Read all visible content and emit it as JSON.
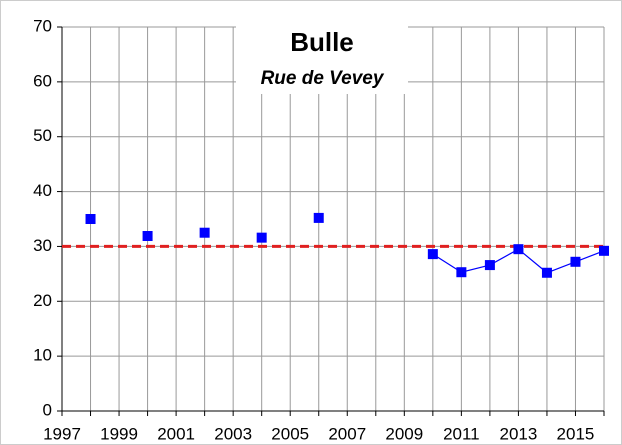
{
  "chart_data": {
    "type": "scatter",
    "title": "Bulle",
    "subtitle": "Rue de Vevey",
    "x": [
      1998,
      1999,
      2000,
      2001,
      2002,
      2003,
      2004,
      2005,
      2006,
      2007,
      2008,
      2009,
      2010,
      2011,
      2012,
      2013,
      2014,
      2015,
      2016
    ],
    "series": [
      {
        "color": "#0000ff",
        "values": [
          35.0,
          null,
          31.9,
          null,
          32.5,
          null,
          31.6,
          null,
          35.2,
          null,
          null,
          null,
          28.6,
          25.3,
          26.6,
          29.5,
          25.2,
          27.2,
          29.2
        ]
      }
    ],
    "reference_line": {
      "value": 30,
      "color": "#e02020"
    },
    "xlim": [
      1997,
      2016
    ],
    "xticks": [
      1997,
      1999,
      2001,
      2003,
      2005,
      2007,
      2009,
      2011,
      2013,
      2015
    ],
    "xminorticks": [
      1998,
      2000,
      2002,
      2004,
      2006,
      2008,
      2010,
      2012,
      2014,
      2016
    ],
    "ylim": [
      0,
      70
    ],
    "yticks": [
      0,
      10,
      20,
      30,
      40,
      50,
      60,
      70
    ],
    "grid": true
  }
}
